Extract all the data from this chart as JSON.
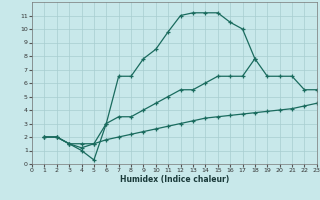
{
  "xlabel": "Humidex (Indice chaleur)",
  "bg_color": "#c8e8ea",
  "grid_color": "#a8cdd0",
  "line_color": "#1a6b5e",
  "xlim": [
    0,
    23
  ],
  "ylim": [
    0,
    12
  ],
  "xticks": [
    0,
    1,
    2,
    3,
    4,
    5,
    6,
    7,
    8,
    9,
    10,
    11,
    12,
    13,
    14,
    15,
    16,
    17,
    18,
    19,
    20,
    21,
    22,
    23
  ],
  "yticks": [
    0,
    1,
    2,
    3,
    4,
    5,
    6,
    7,
    8,
    9,
    10,
    11
  ],
  "curve1_x": [
    1,
    2,
    3,
    4,
    5,
    6,
    7,
    8,
    9,
    10,
    11,
    12,
    13,
    14,
    15,
    16,
    17,
    18
  ],
  "curve1_y": [
    2,
    2,
    1.5,
    1,
    0.3,
    3,
    6.5,
    6.5,
    7.8,
    8.5,
    9.8,
    11,
    11.2,
    11.2,
    11.2,
    10.5,
    10,
    7.8
  ],
  "curve2_x": [
    1,
    2,
    3,
    4,
    5,
    6,
    7,
    8,
    9,
    10,
    11,
    12,
    13,
    14,
    15,
    16,
    17,
    18,
    19,
    20,
    21,
    22,
    23
  ],
  "curve2_y": [
    2,
    2,
    1.5,
    1.2,
    1.5,
    3,
    3.5,
    3.5,
    4,
    4.5,
    5,
    5.5,
    5.5,
    6,
    6.5,
    6.5,
    6.5,
    7.8,
    6.5,
    6.5,
    6.5,
    5.5,
    5.5
  ],
  "curve3_x": [
    1,
    2,
    3,
    4,
    5,
    6,
    7,
    8,
    9,
    10,
    11,
    12,
    13,
    14,
    15,
    16,
    17,
    18,
    19,
    20,
    21,
    22,
    23
  ],
  "curve3_y": [
    2,
    2,
    1.5,
    1.5,
    1.5,
    1.8,
    2,
    2.2,
    2.4,
    2.6,
    2.8,
    3,
    3.2,
    3.4,
    3.5,
    3.6,
    3.7,
    3.8,
    3.9,
    4.0,
    4.1,
    4.3,
    4.5
  ]
}
